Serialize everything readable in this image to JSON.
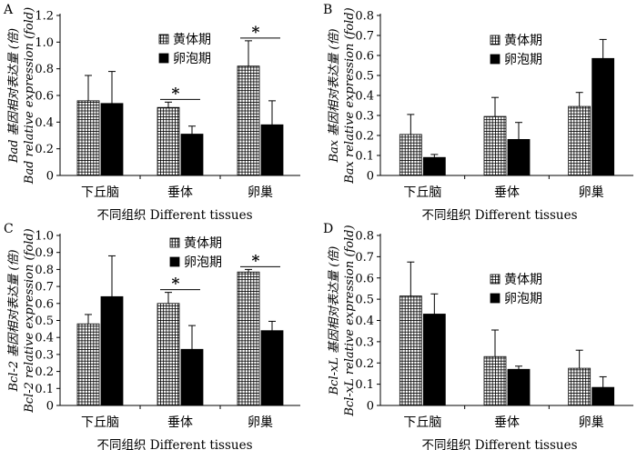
{
  "legend": {
    "luteal": "黄体期",
    "follicular": "卵泡期"
  },
  "colors": {
    "axis": "#000000",
    "errorbar": "#000000",
    "follicular_fill": "#000000",
    "luteal_fill": "#ffffff"
  },
  "chart_data": [
    {
      "type": "bar",
      "panel_label": "A",
      "categories": [
        "下丘脑",
        "垂体",
        "卵巢"
      ],
      "series": [
        {
          "name": "黄体期",
          "values": [
            0.56,
            0.51,
            0.82
          ],
          "errors": [
            0.19,
            0.04,
            0.19
          ]
        },
        {
          "name": "卵泡期",
          "values": [
            0.54,
            0.31,
            0.38
          ],
          "errors": [
            0.24,
            0.06,
            0.18
          ]
        }
      ],
      "ylim": [
        0,
        1.2
      ],
      "yticks": [
        "0",
        "0.2",
        "0.4",
        "0.6",
        "0.8",
        "1.0",
        "1.2"
      ],
      "ylabel_cn": "Bad 基因相对表达量 (倍)",
      "ylabel_en": "Bad relative expression (fold)",
      "xlabel": "不同组织 Different tissues",
      "significance": [
        false,
        true,
        true
      ],
      "sig_mark": "*"
    },
    {
      "type": "bar",
      "panel_label": "B",
      "categories": [
        "下丘脑",
        "垂体",
        "卵巢"
      ],
      "series": [
        {
          "name": "黄体期",
          "values": [
            0.205,
            0.295,
            0.345
          ],
          "errors": [
            0.1,
            0.095,
            0.07
          ]
        },
        {
          "name": "卵泡期",
          "values": [
            0.09,
            0.18,
            0.585
          ],
          "errors": [
            0.015,
            0.085,
            0.095
          ]
        }
      ],
      "ylim": [
        0,
        0.8
      ],
      "yticks": [
        "0",
        "0.1",
        "0.2",
        "0.3",
        "0.4",
        "0.5",
        "0.6",
        "0.7",
        "0.8"
      ],
      "ylabel_cn": "Bax 基因相对表达量 (倍)",
      "ylabel_en": "Bax relative expression (fold)",
      "xlabel": "不同组织 Different tissues",
      "significance": [
        false,
        false,
        false
      ],
      "sig_mark": "*"
    },
    {
      "type": "bar",
      "panel_label": "C",
      "categories": [
        "下丘脑",
        "垂体",
        "卵巢"
      ],
      "series": [
        {
          "name": "黄体期",
          "values": [
            0.48,
            0.6,
            0.785
          ],
          "errors": [
            0.055,
            0.065,
            0.015
          ]
        },
        {
          "name": "卵泡期",
          "values": [
            0.64,
            0.33,
            0.44
          ],
          "errors": [
            0.24,
            0.14,
            0.055
          ]
        }
      ],
      "ylim": [
        0,
        1.0
      ],
      "yticks": [
        "0",
        "0.1",
        "0.2",
        "0.3",
        "0.4",
        "0.5",
        "0.6",
        "0.7",
        "0.8",
        "0.9",
        "1.0"
      ],
      "ylabel_cn": "Bcl-2 基因相对表达量 (倍)",
      "ylabel_en": "Bcl-2 relative expression (fold)",
      "xlabel": "不同组织 Different tissues",
      "significance": [
        false,
        true,
        true
      ],
      "sig_mark": "*"
    },
    {
      "type": "bar",
      "panel_label": "D",
      "categories": [
        "下丘脑",
        "垂体",
        "卵巢"
      ],
      "series": [
        {
          "name": "黄体期",
          "values": [
            0.515,
            0.23,
            0.175
          ],
          "errors": [
            0.16,
            0.125,
            0.085
          ]
        },
        {
          "name": "卵泡期",
          "values": [
            0.43,
            0.17,
            0.085
          ],
          "errors": [
            0.095,
            0.015,
            0.05
          ]
        }
      ],
      "ylim": [
        0,
        0.8
      ],
      "yticks": [
        "0",
        "0.1",
        "0.2",
        "0.3",
        "0.4",
        "0.5",
        "0.6",
        "0.7",
        "0.8"
      ],
      "ylabel_cn": "Bcl-xL 基因相对表达量 (倍)",
      "ylabel_en": "Bcl-xL relative expression (fold)",
      "xlabel": "不同组织 Different tissues",
      "significance": [
        false,
        false,
        false
      ],
      "sig_mark": "*"
    }
  ]
}
